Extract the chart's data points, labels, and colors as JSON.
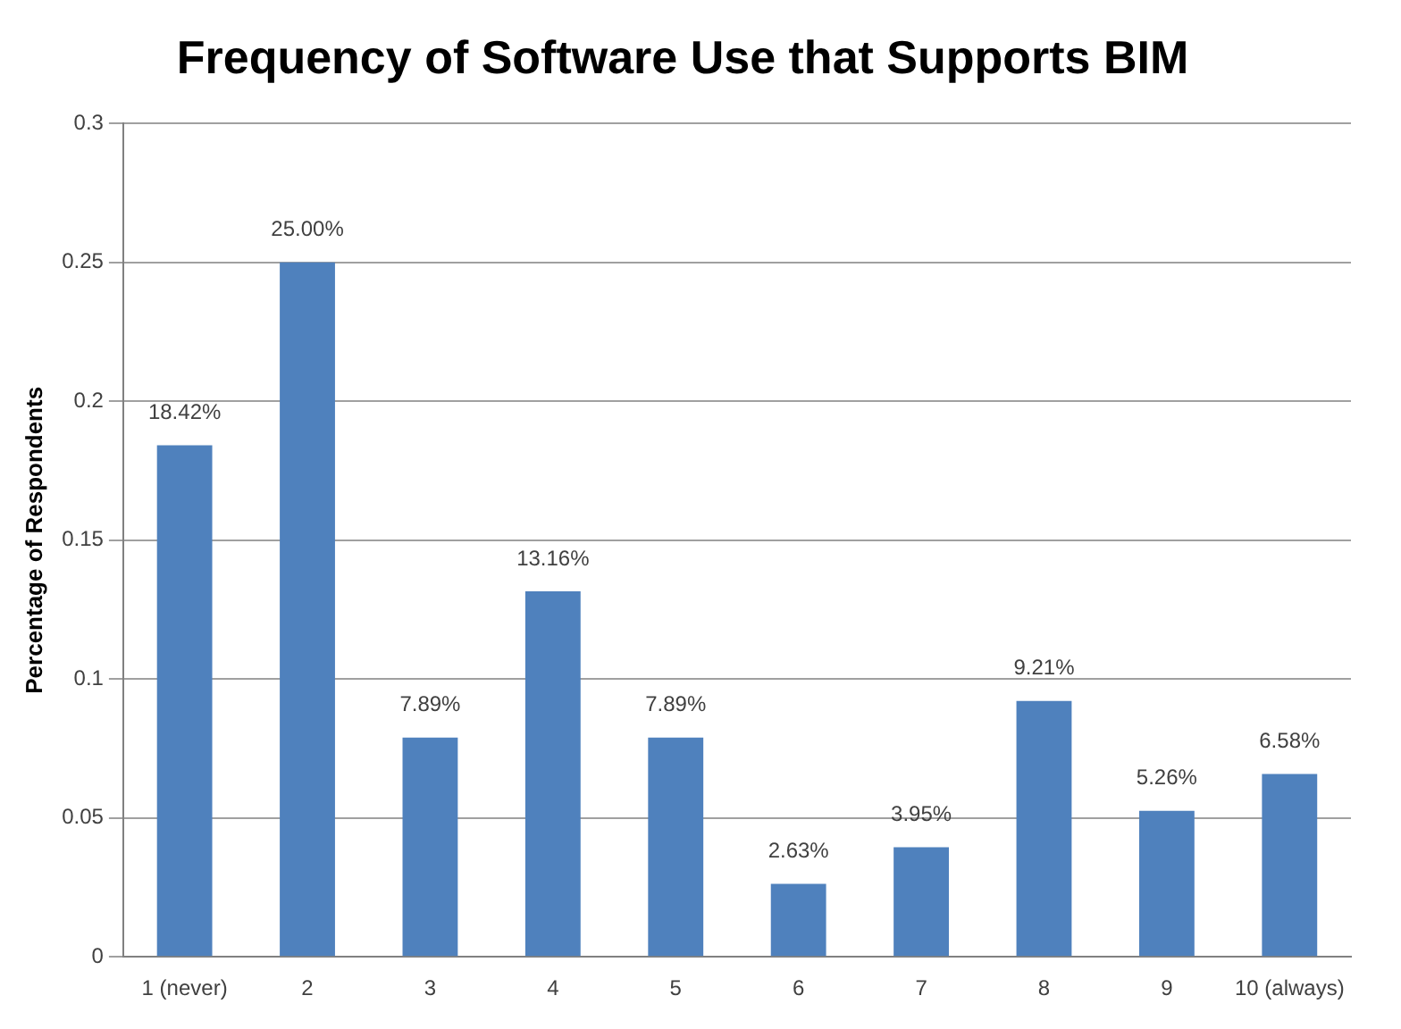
{
  "chart_data": {
    "type": "bar",
    "title": "Frequency of Software Use that Supports BIM",
    "ylabel": "Percentage of Respondents",
    "categories": [
      "1 (never)",
      "2",
      "3",
      "4",
      "5",
      "6",
      "7",
      "8",
      "9",
      "10 (always)"
    ],
    "values": [
      0.1842,
      0.25,
      0.0789,
      0.1316,
      0.0789,
      0.0263,
      0.0395,
      0.0921,
      0.0526,
      0.0658
    ],
    "value_labels": [
      "18.42%",
      "25.00%",
      "7.89%",
      "13.16%",
      "7.89%",
      "2.63%",
      "3.95%",
      "9.21%",
      "5.26%",
      "6.58%"
    ],
    "color": "#4f81bd",
    "ylim": [
      0,
      0.3
    ],
    "yticks": [
      0,
      0.05,
      0.1,
      0.15,
      0.2,
      0.25,
      0.3
    ],
    "grid": "y",
    "legend": false
  }
}
